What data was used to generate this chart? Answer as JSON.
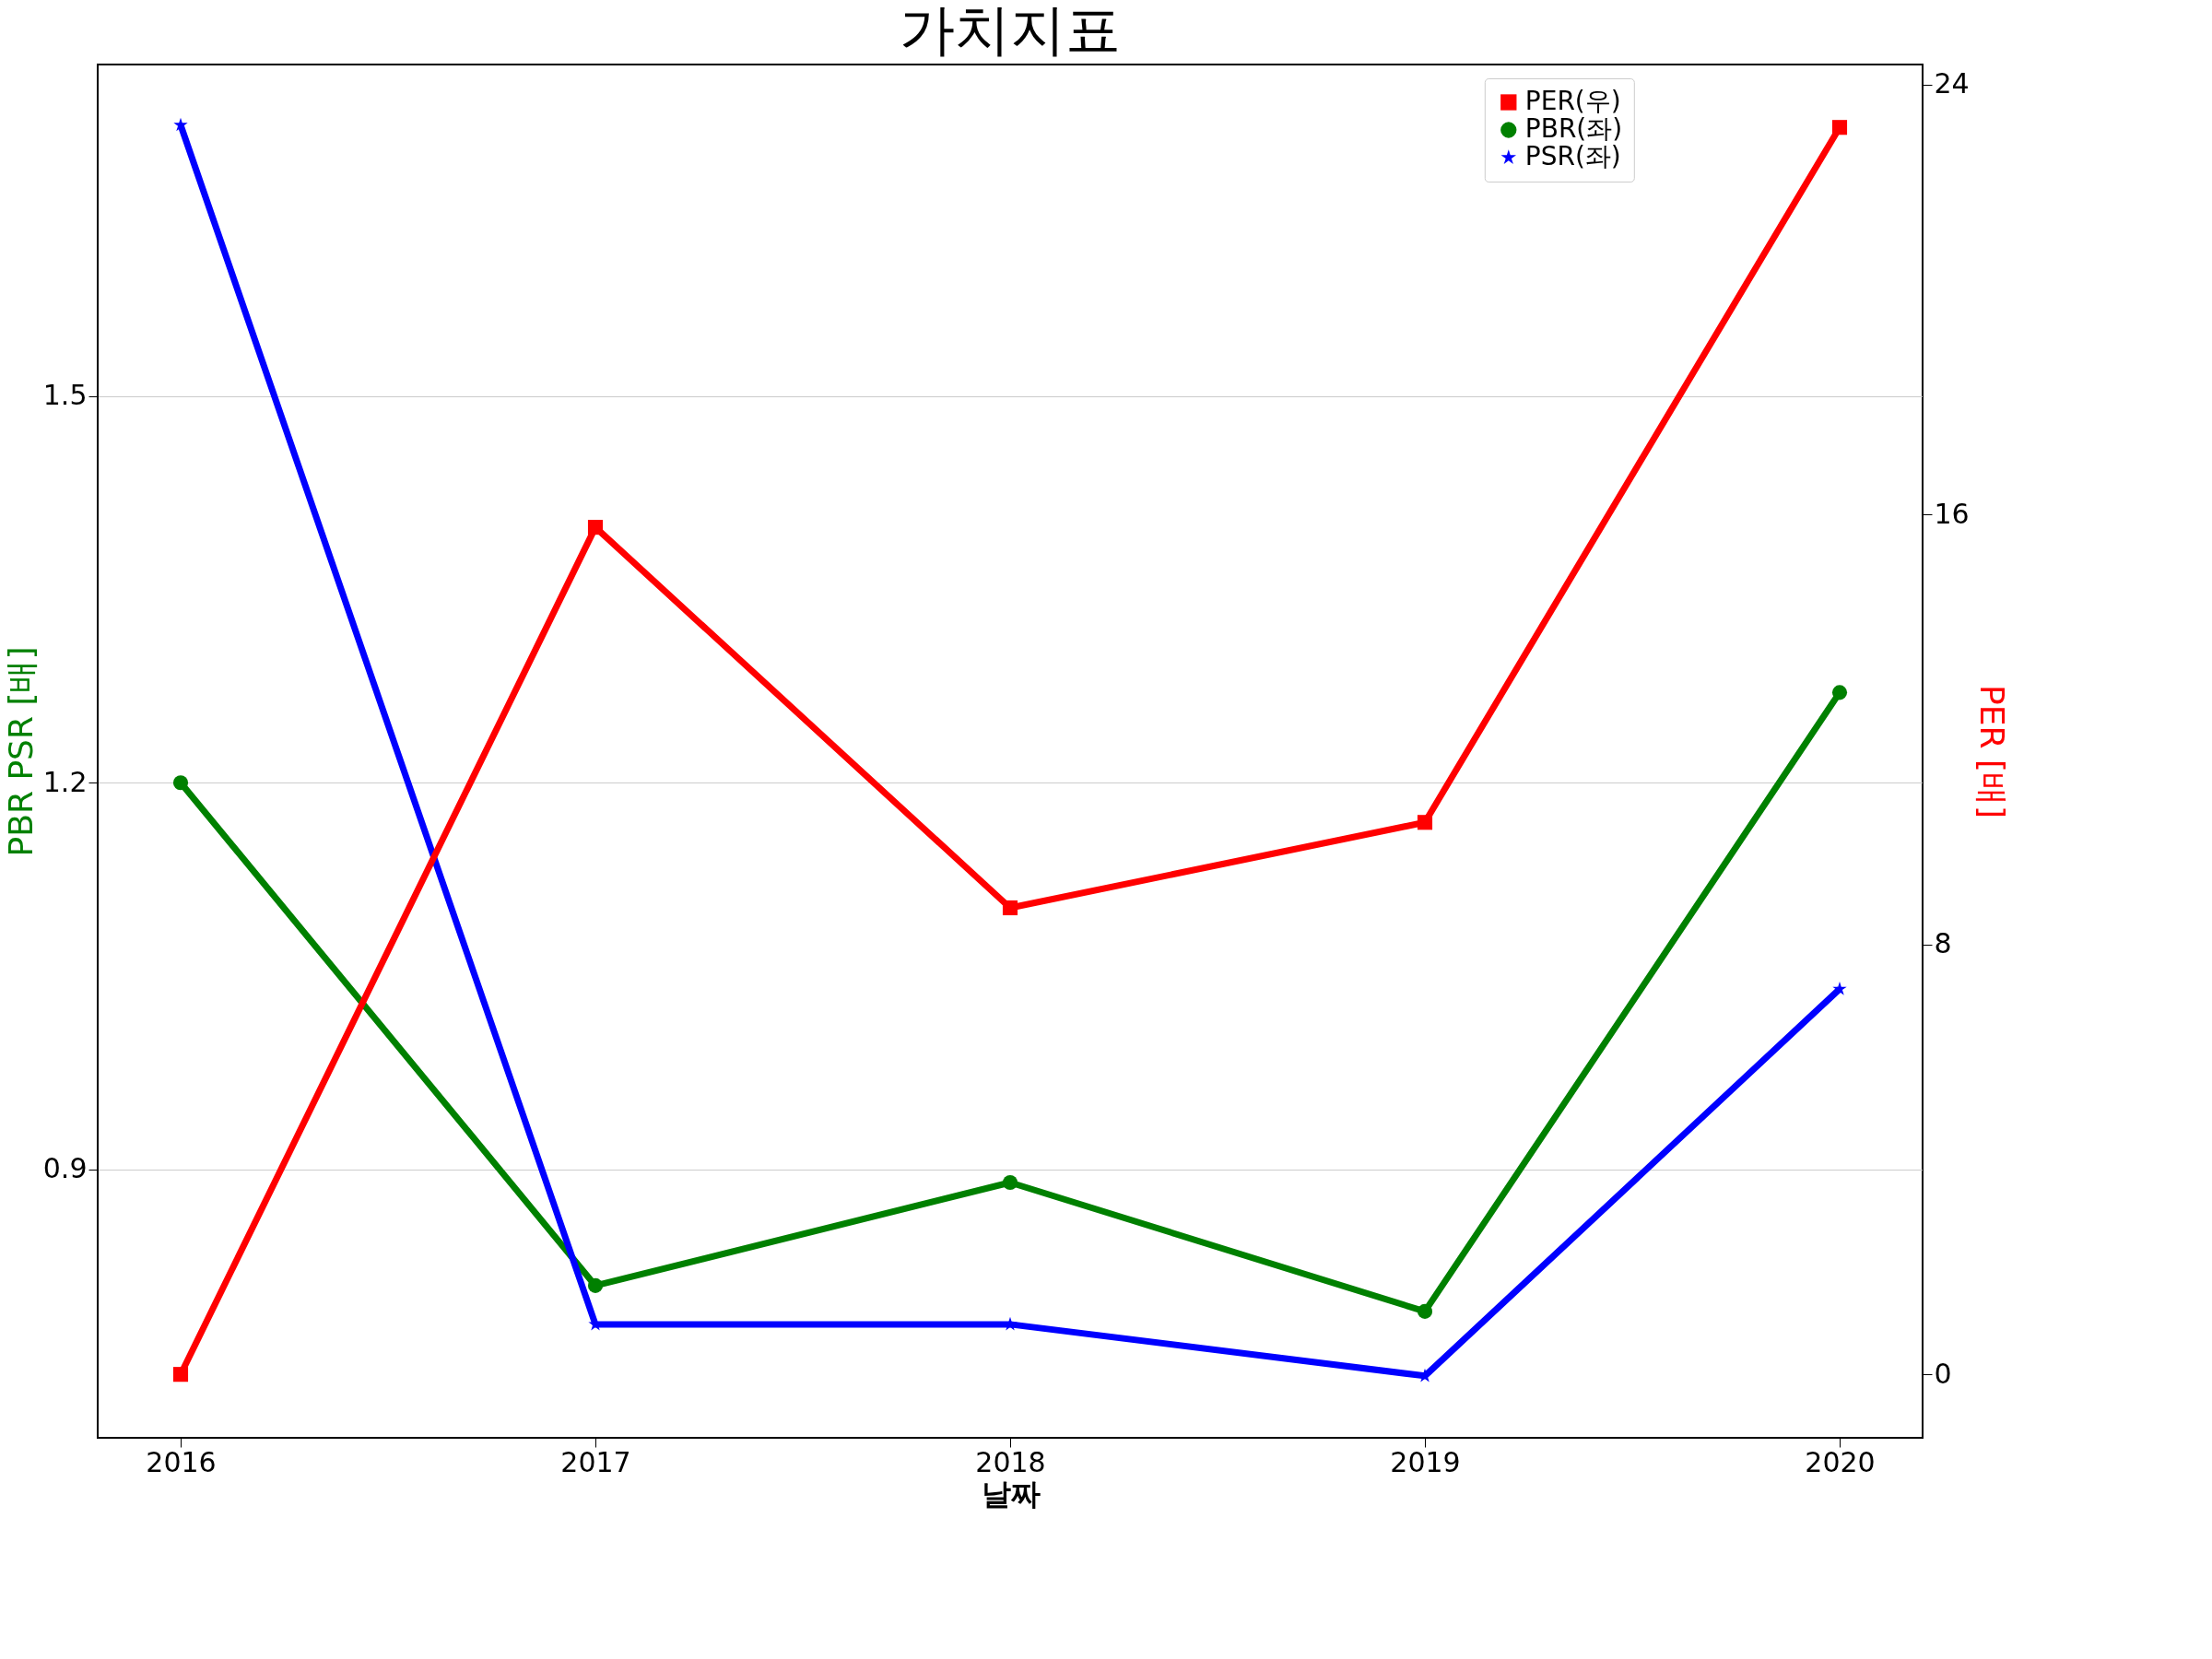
{
  "chart_data": {
    "type": "line",
    "title": "가치지표",
    "xlabel": "날짜",
    "ylabel": "PBR PSR [배]",
    "y2label": "PER [배]",
    "x": [
      2016,
      2017,
      2018,
      2019,
      2020
    ],
    "series": [
      {
        "name": "PER(우)",
        "color": "#ff0000",
        "axis": "y2",
        "marker": "square",
        "values": [
          0,
          15.76,
          8.68,
          10.27,
          23.2
        ]
      },
      {
        "name": "PBR(좌)",
        "color": "#008000",
        "marker": "circle",
        "values": [
          1.2,
          0.81,
          0.89,
          0.79,
          1.27
        ]
      },
      {
        "name": "PSR(좌)",
        "color": "#0000ff",
        "marker": "star",
        "values": [
          1.71,
          0.78,
          0.78,
          0.74,
          1.04
        ]
      }
    ],
    "xlim": [
      2015.8,
      2020.2
    ],
    "xticks": [
      2016,
      2017,
      2018,
      2019,
      2020
    ],
    "ylim": [
      0.692,
      1.757
    ],
    "yticks": [
      0.9,
      1.2,
      1.5
    ],
    "y2lim": [
      -1.18,
      24.37
    ],
    "y2ticks": [
      0,
      8,
      16,
      24
    ],
    "grid": "y",
    "legend": "top right",
    "line_style": "solid"
  }
}
